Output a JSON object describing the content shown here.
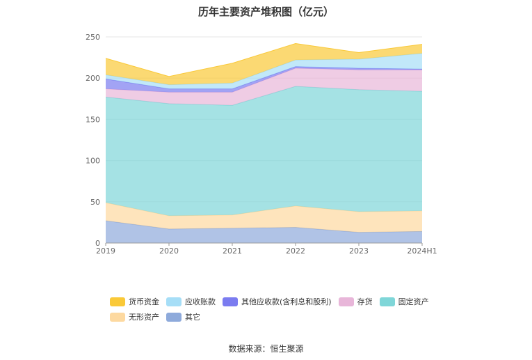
{
  "title": "历年主要资产堆积图（亿元）",
  "source": "数据来源：恒生聚源",
  "chart_data": {
    "type": "area",
    "stacked": true,
    "x": [
      "2019",
      "2020",
      "2021",
      "2022",
      "2023",
      "2024H1"
    ],
    "ylim": [
      0,
      250
    ],
    "yticks": [
      0,
      50,
      100,
      150,
      200,
      250
    ],
    "grid": true,
    "legend_position": "bottom",
    "series": [
      {
        "name": "其它",
        "color": "#8eaadb",
        "values": [
          27,
          17,
          18,
          19,
          13,
          14
        ]
      },
      {
        "name": "无形资产",
        "color": "#fdd9a0",
        "values": [
          22,
          16,
          16,
          26,
          25,
          25
        ]
      },
      {
        "name": "固定资产",
        "color": "#7fd6d8",
        "values": [
          128,
          136,
          133,
          145,
          148,
          145
        ]
      },
      {
        "name": "存货",
        "color": "#e8b6d9",
        "values": [
          10,
          14,
          16,
          22,
          24,
          26
        ]
      },
      {
        "name": "其他应收款(含利息和股利)",
        "color": "#7b7cf0",
        "values": [
          12,
          4,
          4,
          2,
          2,
          1
        ]
      },
      {
        "name": "应收账款",
        "color": "#a6def7",
        "values": [
          5,
          5,
          7,
          8,
          11,
          19
        ]
      },
      {
        "name": "货币资金",
        "color": "#fac938",
        "values": [
          20,
          10,
          24,
          20,
          8,
          11
        ]
      }
    ],
    "legend_order": [
      "货币资金",
      "应收账款",
      "其他应收款(含利息和股利)",
      "存货",
      "固定资产",
      "无形资产",
      "其它"
    ]
  }
}
